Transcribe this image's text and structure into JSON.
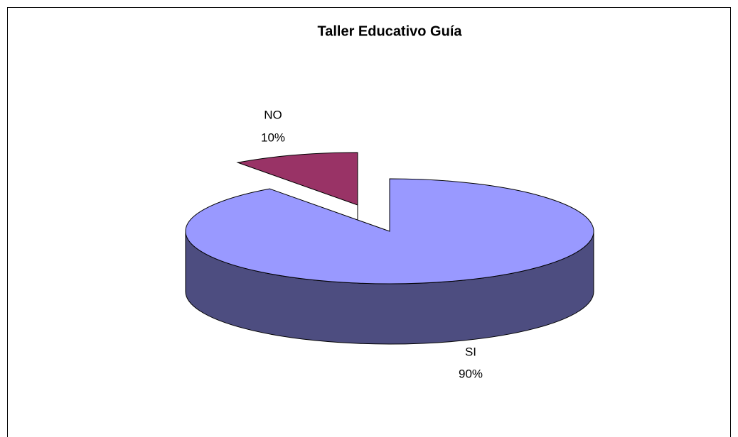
{
  "chart_data": {
    "type": "pie",
    "title": "Taller Educativo Guía",
    "categories": [
      "SI",
      "NO"
    ],
    "values": [
      90,
      10
    ],
    "value_labels": [
      "90%",
      "10%"
    ],
    "colors": [
      "#9999ff",
      "#993366"
    ],
    "side_colors": [
      "#4d4d80",
      "#4d1a33"
    ]
  }
}
